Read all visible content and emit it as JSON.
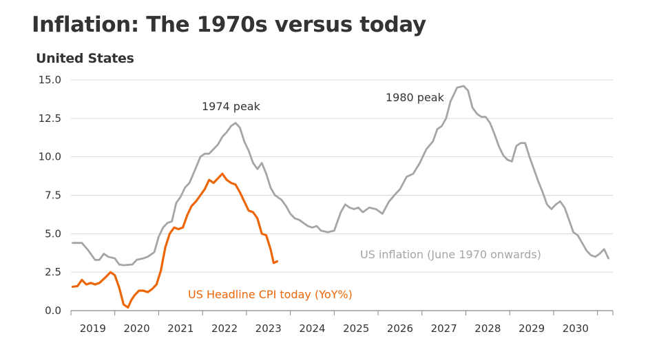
{
  "title": "Inflation: The 1970s versus today",
  "subtitle": "United States",
  "chart_data": {
    "type": "line",
    "title": "Inflation: The 1970s versus today",
    "subtitle": "United States",
    "xlabel": "",
    "ylabel": "",
    "xlim": [
      2018.5,
      2030.85
    ],
    "ylim": [
      0,
      15
    ],
    "yticks": [
      0.0,
      2.5,
      5.0,
      7.5,
      10.0,
      12.5,
      15.0
    ],
    "ytick_labels": [
      "0.0",
      "2.5",
      "5.0",
      "7.5",
      "10.0",
      "12.5",
      "15.0"
    ],
    "xtick_labels": [
      "2019",
      "2020",
      "2021",
      "2022",
      "2023",
      "2024",
      "2025",
      "2026",
      "2027",
      "2028",
      "2029",
      "2030"
    ],
    "grid": true,
    "series": [
      {
        "name": "US inflation (June 1970 onwards)",
        "color": "#a5a5a5",
        "x": [
          2018.54,
          2018.75,
          2018.9,
          2019.05,
          2019.15,
          2019.25,
          2019.35,
          2019.5,
          2019.6,
          2019.7,
          2019.9,
          2020.0,
          2020.15,
          2020.25,
          2020.4,
          2020.5,
          2020.6,
          2020.7,
          2020.8,
          2020.9,
          2021.0,
          2021.1,
          2021.2,
          2021.35,
          2021.45,
          2021.55,
          2021.65,
          2021.75,
          2021.85,
          2021.95,
          2022.05,
          2022.15,
          2022.25,
          2022.35,
          2022.45,
          2022.55,
          2022.65,
          2022.75,
          2022.85,
          2022.95,
          2023.05,
          2023.15,
          2023.3,
          2023.4,
          2023.5,
          2023.6,
          2023.7,
          2023.8,
          2023.9,
          2024.0,
          2024.1,
          2024.2,
          2024.35,
          2024.5,
          2024.65,
          2024.75,
          2024.85,
          2024.95,
          2025.05,
          2025.15,
          2025.3,
          2025.45,
          2025.6,
          2025.75,
          2025.9,
          2026.0,
          2026.15,
          2026.3,
          2026.45,
          2026.6,
          2026.75,
          2026.85,
          2026.95,
          2027.05,
          2027.15,
          2027.3,
          2027.45,
          2027.55,
          2027.65,
          2027.75,
          2027.85,
          2027.95,
          2028.05,
          2028.15,
          2028.25,
          2028.35,
          2028.45,
          2028.55,
          2028.65,
          2028.75,
          2028.85,
          2028.95,
          2029.05,
          2029.15,
          2029.25,
          2029.35,
          2029.45,
          2029.55,
          2029.65,
          2029.75,
          2029.85,
          2029.95,
          2030.05,
          2030.15,
          2030.25,
          2030.35,
          2030.45,
          2030.55,
          2030.65,
          2030.75
        ],
        "y": [
          4.4,
          4.4,
          3.9,
          3.3,
          3.3,
          3.7,
          3.5,
          3.4,
          3.0,
          2.95,
          3.0,
          3.3,
          3.4,
          3.5,
          3.8,
          4.8,
          5.4,
          5.7,
          5.8,
          7.0,
          7.4,
          8.0,
          8.3,
          9.3,
          10.0,
          10.2,
          10.2,
          10.5,
          10.8,
          11.3,
          11.6,
          12.0,
          12.2,
          11.9,
          11.0,
          10.4,
          9.6,
          9.2,
          9.6,
          8.9,
          8.0,
          7.5,
          7.2,
          6.8,
          6.3,
          6.0,
          5.9,
          5.7,
          5.5,
          5.4,
          5.5,
          5.2,
          5.1,
          5.2,
          6.4,
          6.9,
          6.7,
          6.6,
          6.7,
          6.4,
          6.7,
          6.6,
          6.3,
          7.1,
          7.6,
          7.9,
          8.7,
          8.9,
          9.6,
          10.5,
          11.0,
          11.8,
          12.0,
          12.5,
          13.6,
          14.5,
          14.6,
          14.3,
          13.2,
          12.8,
          12.6,
          12.6,
          12.2,
          11.5,
          10.7,
          10.1,
          9.8,
          9.7,
          10.7,
          10.9,
          10.9,
          10.0,
          9.2,
          8.4,
          7.7,
          6.9,
          6.6,
          6.9,
          7.1,
          6.7,
          5.9,
          5.1,
          4.9,
          4.4,
          3.9,
          3.6,
          3.5,
          3.7,
          4.0,
          3.4
        ]
      },
      {
        "name": "US Headline CPI today (YoY%)",
        "color": "#ec6608",
        "x": [
          2018.54,
          2018.65,
          2018.75,
          2018.85,
          2018.95,
          2019.05,
          2019.15,
          2019.3,
          2019.4,
          2019.5,
          2019.6,
          2019.7,
          2019.8,
          2019.88,
          2019.95,
          2020.05,
          2020.15,
          2020.25,
          2020.35,
          2020.45,
          2020.55,
          2020.65,
          2020.75,
          2020.85,
          2020.95,
          2021.05,
          2021.15,
          2021.25,
          2021.35,
          2021.45,
          2021.55,
          2021.65,
          2021.75,
          2021.85,
          2021.95,
          2022.05,
          2022.15,
          2022.25,
          2022.35,
          2022.45,
          2022.55,
          2022.65,
          2022.75,
          2022.85,
          2022.95,
          2023.05,
          2023.12,
          2023.2
        ],
        "y": [
          1.55,
          1.6,
          2.0,
          1.7,
          1.8,
          1.7,
          1.8,
          2.2,
          2.5,
          2.3,
          1.5,
          0.4,
          0.2,
          0.7,
          1.0,
          1.3,
          1.3,
          1.2,
          1.4,
          1.7,
          2.6,
          4.1,
          5.0,
          5.4,
          5.3,
          5.4,
          6.2,
          6.8,
          7.1,
          7.5,
          7.9,
          8.5,
          8.3,
          8.6,
          8.9,
          8.5,
          8.3,
          8.2,
          7.7,
          7.1,
          6.5,
          6.4,
          6.0,
          5.0,
          4.9,
          4.0,
          3.1,
          3.2
        ]
      }
    ],
    "annotations": [
      "1974 peak",
      "1980 peak",
      "US inflation (June 1970 onwards)",
      "US Headline CPI today (YoY%)"
    ]
  }
}
